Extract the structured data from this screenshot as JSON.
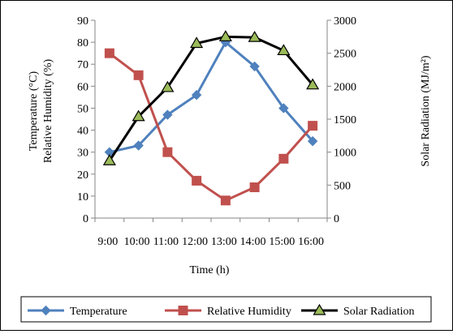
{
  "chart_data": {
    "type": "line",
    "categories": [
      "9:00",
      "10:00",
      "11:00",
      "12:00",
      "13:00",
      "14:00",
      "15:00",
      "16:00"
    ],
    "xlabel": "Time (h)",
    "y_left": {
      "label_lines": [
        "Temperature (°C)",
        "Relative Humidity (%)"
      ],
      "ylim": [
        0,
        90
      ],
      "ticks": [
        0,
        10,
        20,
        30,
        40,
        50,
        60,
        70,
        80,
        90
      ]
    },
    "y_right": {
      "label": "Solar Radiation (MJ/m²)",
      "ylim": [
        0,
        3000
      ],
      "ticks": [
        0,
        500,
        1000,
        1500,
        2000,
        2500,
        3000
      ]
    },
    "series": [
      {
        "name": "Temperature",
        "axis": "left",
        "marker": "diamond",
        "color": "#4f81bd",
        "values": [
          30,
          33,
          47,
          56,
          80,
          69,
          50,
          35
        ]
      },
      {
        "name": "Relative Humidity",
        "axis": "left",
        "marker": "square",
        "color": "#c0504d",
        "values": [
          75,
          65,
          30,
          17,
          8,
          14,
          27,
          42
        ]
      },
      {
        "name": "Solar Radiation",
        "axis": "right",
        "marker": "triangle",
        "color": "#000000",
        "marker_fill": "#9bbb59",
        "values": [
          870,
          1540,
          1980,
          2650,
          2750,
          2740,
          2540,
          2020
        ]
      }
    ],
    "grid": false,
    "legend_position": "bottom"
  }
}
